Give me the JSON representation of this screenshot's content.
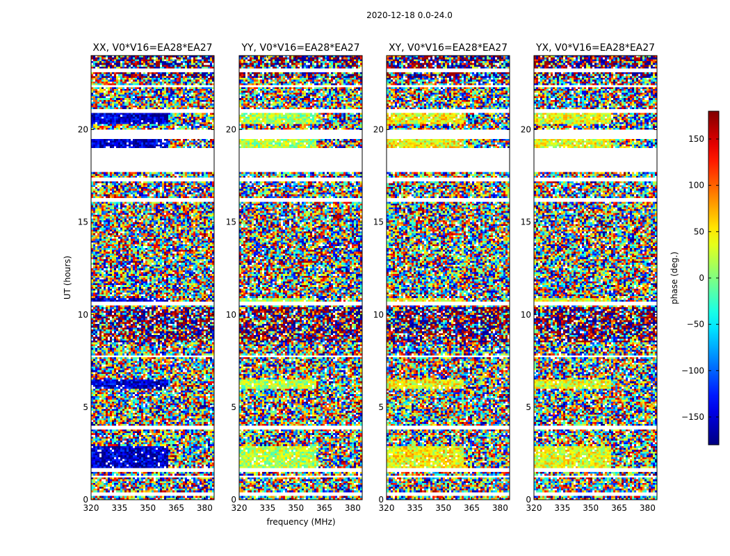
{
  "figure_title": "2020-12-18 0.0-24.0",
  "chart_data": [
    {
      "type": "heatmap",
      "title": "XX, V0*V16=EA28*EA27",
      "xlabel": "",
      "ylabel": "UT (hours)",
      "xlim": [
        320,
        385
      ],
      "ylim": [
        0,
        24
      ],
      "x_ticks": [
        320,
        335,
        350,
        365,
        380
      ],
      "y_ticks": [
        0,
        5,
        10,
        15,
        20
      ],
      "value": "phase (deg.)"
    },
    {
      "type": "heatmap",
      "title": "YY, V0*V16=EA28*EA27",
      "xlabel": "frequency (MHz)",
      "ylabel": "",
      "xlim": [
        320,
        385
      ],
      "ylim": [
        0,
        24
      ],
      "x_ticks": [
        320,
        335,
        350,
        365,
        380
      ],
      "y_ticks": [
        0,
        5,
        10,
        15,
        20
      ],
      "value": "phase (deg.)"
    },
    {
      "type": "heatmap",
      "title": "XY, V0*V16=EA28*EA27",
      "xlabel": "",
      "ylabel": "",
      "xlim": [
        320,
        385
      ],
      "ylim": [
        0,
        24
      ],
      "x_ticks": [
        320,
        335,
        350,
        365,
        380
      ],
      "y_ticks": [
        0,
        5,
        10,
        15,
        20
      ],
      "value": "phase (deg.)"
    },
    {
      "type": "heatmap",
      "title": "YX, V0*V16=EA28*EA27",
      "xlabel": "",
      "ylabel": "",
      "xlim": [
        320,
        385
      ],
      "ylim": [
        0,
        24
      ],
      "x_ticks": [
        320,
        335,
        350,
        365,
        380
      ],
      "y_ticks": [
        0,
        5,
        10,
        15,
        20
      ],
      "value": "phase (deg.)"
    }
  ],
  "flagged_time_ranges_ut_hours": [
    [
      0.25,
      0.38
    ],
    [
      1.22,
      1.32
    ],
    [
      1.55,
      1.65
    ],
    [
      3.85,
      4.05
    ],
    [
      7.65,
      7.75
    ],
    [
      10.55,
      10.65
    ],
    [
      16.1,
      16.25
    ],
    [
      17.25,
      17.35
    ],
    [
      17.75,
      19.0
    ],
    [
      19.55,
      19.95
    ],
    [
      20.95,
      21.1
    ],
    [
      22.3,
      22.4
    ],
    [
      23.15,
      23.25
    ]
  ],
  "colorbar": {
    "label": "phase (deg.)",
    "range": [
      -180,
      180
    ],
    "ticks": [
      -150,
      -100,
      -50,
      0,
      50,
      100,
      150
    ],
    "tick_labels": [
      "−150",
      "−100",
      "−50",
      "0",
      "50",
      "100",
      "150"
    ]
  }
}
